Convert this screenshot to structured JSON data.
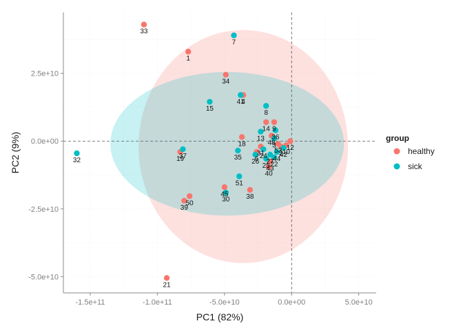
{
  "chart_data": {
    "type": "scatter",
    "xlabel": "PC1 (82%)",
    "ylabel": "PC2 (9%)",
    "xlim": [
      -170000000000.0,
      63000000000.0
    ],
    "ylim": [
      -56000000000.0,
      47500000000.0
    ],
    "x_ticks": [
      {
        "value": -150000000000.0,
        "label": "-1.5e+11"
      },
      {
        "value": -100000000000.0,
        "label": "-1.0e+11"
      },
      {
        "value": -50000000000.0,
        "label": "-5.0e+10"
      },
      {
        "value": 0,
        "label": "0.0e+00"
      },
      {
        "value": 50000000000.0,
        "label": "5.0e+10"
      }
    ],
    "y_ticks": [
      {
        "value": 25000000000.0,
        "label": "2.5e+10"
      },
      {
        "value": 0,
        "label": "0.0e+00"
      },
      {
        "value": -25000000000.0,
        "label": "-2.5e+10"
      },
      {
        "value": -50000000000.0,
        "label": "-5.0e+10"
      }
    ],
    "grid": true,
    "reference_lines": {
      "x": 0,
      "y": 0,
      "style": "dashed"
    },
    "legend": {
      "title": "group",
      "position": "right",
      "entries": [
        {
          "name": "healthy",
          "color": "#F8766D"
        },
        {
          "name": "sick",
          "color": "#00BFC4"
        }
      ]
    },
    "ellipses": [
      {
        "group": "healthy",
        "cx": -36000000000.0,
        "cy": -2000000000.0,
        "rx": 78000000000.0,
        "ry": 43000000000.0,
        "color": "#F8766D",
        "opacity": 0.22
      },
      {
        "group": "sick",
        "cx": -48000000000.0,
        "cy": -1000000000.0,
        "rx": 87000000000.0,
        "ry": 26500000000.0,
        "color": "#00BFC4",
        "opacity": 0.22
      }
    ],
    "series": [
      {
        "name": "healthy",
        "color": "#F8766D",
        "points": [
          {
            "label": "33",
            "x": -110000000000.0,
            "y": 43000000000.0
          },
          {
            "label": "1",
            "x": -77000000000.0,
            "y": 33000000000.0
          },
          {
            "label": "34",
            "x": -49000000000.0,
            "y": 24500000000.0
          },
          {
            "label": "4",
            "x": -36000000000.0,
            "y": 17000000000.0
          },
          {
            "label": "18",
            "x": -37000000000.0,
            "y": 1500000000.0
          },
          {
            "label": "14",
            "x": -19000000000.0,
            "y": 7000000000.0
          },
          {
            "label": "9",
            "x": -13000000000.0,
            "y": 7000000000.0
          },
          {
            "label": "31",
            "x": -23000000000.0,
            "y": -2000000000.0
          },
          {
            "label": "48",
            "x": -15000000000.0,
            "y": 2000000000.0
          },
          {
            "label": "53",
            "x": -10000000000.0,
            "y": -1000000000.0
          },
          {
            "label": "6",
            "x": -26000000000.0,
            "y": -4000000000.0
          },
          {
            "label": "2",
            "x": -8000000000.0,
            "y": -2000000000.0
          },
          {
            "label": "10",
            "x": -4000000000.0,
            "y": -1500000000.0
          },
          {
            "label": "12",
            "x": -1000000000.0,
            "y": 0
          },
          {
            "label": "43",
            "x": -16000000000.0,
            "y": -7500000000.0
          },
          {
            "label": "40",
            "x": -17000000000.0,
            "y": -9500000000.0
          },
          {
            "label": "19",
            "x": -83000000000.0,
            "y": -4000000000.0
          },
          {
            "label": "45",
            "x": -50000000000.0,
            "y": -17000000000.0
          },
          {
            "label": "38",
            "x": -31000000000.0,
            "y": -18000000000.0
          },
          {
            "label": "50",
            "x": -76000000000.0,
            "y": -20300000000.0
          },
          {
            "label": "39",
            "x": -80000000000.0,
            "y": -22000000000.0
          },
          {
            "label": "21",
            "x": -93000000000.0,
            "y": -50500000000.0
          }
        ]
      },
      {
        "name": "sick",
        "color": "#00BFC4",
        "points": [
          {
            "label": "7",
            "x": -43000000000.0,
            "y": 39000000000.0
          },
          {
            "label": "41",
            "x": -38000000000.0,
            "y": 17000000000.0
          },
          {
            "label": "15",
            "x": -61000000000.0,
            "y": 14500000000.0
          },
          {
            "label": "8",
            "x": -19000000000.0,
            "y": 13000000000.0
          },
          {
            "label": "36",
            "x": -12000000000.0,
            "y": 4000000000.0
          },
          {
            "label": "13",
            "x": -23000000000.0,
            "y": 3500000000.0
          },
          {
            "label": "3",
            "x": -13000000000.0,
            "y": 1000000000.0
          },
          {
            "label": "24",
            "x": -21000000000.0,
            "y": -3000000000.0
          },
          {
            "label": "26",
            "x": -27000000000.0,
            "y": -5000000000.0
          },
          {
            "label": "27",
            "x": -16000000000.0,
            "y": -5000000000.0
          },
          {
            "label": "44",
            "x": -11000000000.0,
            "y": -4000000000.0
          },
          {
            "label": "22",
            "x": -13000000000.0,
            "y": -6000000000.0
          },
          {
            "label": "25",
            "x": -19000000000.0,
            "y": -6500000000.0
          },
          {
            "label": "42",
            "x": -6000000000.0,
            "y": -2500000000.0
          },
          {
            "label": "37",
            "x": -81000000000.0,
            "y": -3000000000.0
          },
          {
            "label": "35",
            "x": -40000000000.0,
            "y": -3500000000.0
          },
          {
            "label": "51",
            "x": -39000000000.0,
            "y": -13000000000.0
          },
          {
            "label": "30",
            "x": -49000000000.0,
            "y": -19000000000.0
          },
          {
            "label": "32",
            "x": -160000000000.0,
            "y": -4500000000.0
          }
        ]
      }
    ]
  }
}
